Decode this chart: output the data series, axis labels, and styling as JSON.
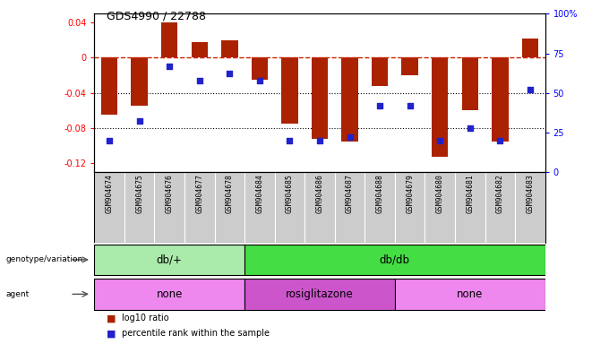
{
  "title": "GDS4990 / 22788",
  "samples": [
    "GSM904674",
    "GSM904675",
    "GSM904676",
    "GSM904677",
    "GSM904678",
    "GSM904684",
    "GSM904685",
    "GSM904686",
    "GSM904687",
    "GSM904688",
    "GSM904679",
    "GSM904680",
    "GSM904681",
    "GSM904682",
    "GSM904683"
  ],
  "log10_ratio": [
    -0.065,
    -0.055,
    0.04,
    0.018,
    0.02,
    -0.025,
    -0.075,
    -0.092,
    -0.095,
    -0.032,
    -0.02,
    -0.113,
    -0.06,
    -0.095,
    0.022
  ],
  "percentile": [
    20,
    32,
    67,
    58,
    62,
    58,
    20,
    20,
    22,
    42,
    42,
    20,
    28,
    20,
    52
  ],
  "ylim_left": [
    -0.13,
    0.05
  ],
  "ylim_right": [
    0,
    100
  ],
  "bar_color": "#aa2200",
  "dot_color": "#2222cc",
  "zero_line_color": "#cc2200",
  "grid_color": "#000000",
  "background_color": "#ffffff",
  "label_bg_color": "#cccccc",
  "genotype_groups": [
    {
      "label": "db/+",
      "start": 0,
      "end": 5,
      "color": "#aaeaaa"
    },
    {
      "label": "db/db",
      "start": 5,
      "end": 15,
      "color": "#44dd44"
    }
  ],
  "agent_groups": [
    {
      "label": "none",
      "start": 0,
      "end": 5,
      "color": "#ee88ee"
    },
    {
      "label": "rosiglitazone",
      "start": 5,
      "end": 10,
      "color": "#cc55cc"
    },
    {
      "label": "none",
      "start": 10,
      "end": 15,
      "color": "#ee88ee"
    }
  ],
  "legend_items": [
    {
      "label": "log10 ratio",
      "color": "#aa2200"
    },
    {
      "label": "percentile rank within the sample",
      "color": "#2222cc"
    }
  ]
}
